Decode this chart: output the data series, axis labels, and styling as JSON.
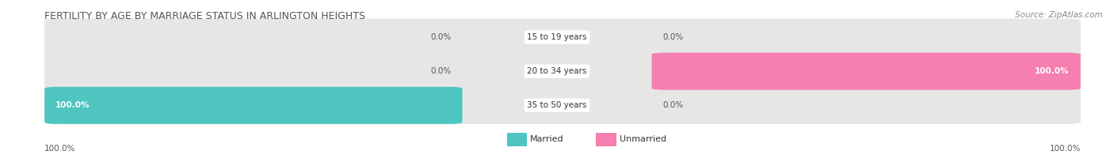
{
  "title": "FERTILITY BY AGE BY MARRIAGE STATUS IN ARLINGTON HEIGHTS",
  "source": "Source: ZipAtlas.com",
  "categories": [
    "15 to 19 years",
    "20 to 34 years",
    "35 to 50 years"
  ],
  "married_values": [
    0.0,
    0.0,
    100.0
  ],
  "unmarried_values": [
    0.0,
    100.0,
    0.0
  ],
  "married_color": "#4ec5c1",
  "unmarried_color": "#f47fb0",
  "bar_bg_color": "#e6e6e6",
  "center_label_bg": "#ffffff",
  "figsize": [
    14.06,
    1.96
  ],
  "dpi": 100,
  "title_fontsize": 9,
  "label_fontsize": 7.5,
  "value_fontsize": 7.5,
  "legend_fontsize": 8,
  "source_fontsize": 7.5,
  "axis_label_left": "100.0%",
  "axis_label_right": "100.0%",
  "title_color": "#555555",
  "value_color": "#555555",
  "source_color": "#888888"
}
